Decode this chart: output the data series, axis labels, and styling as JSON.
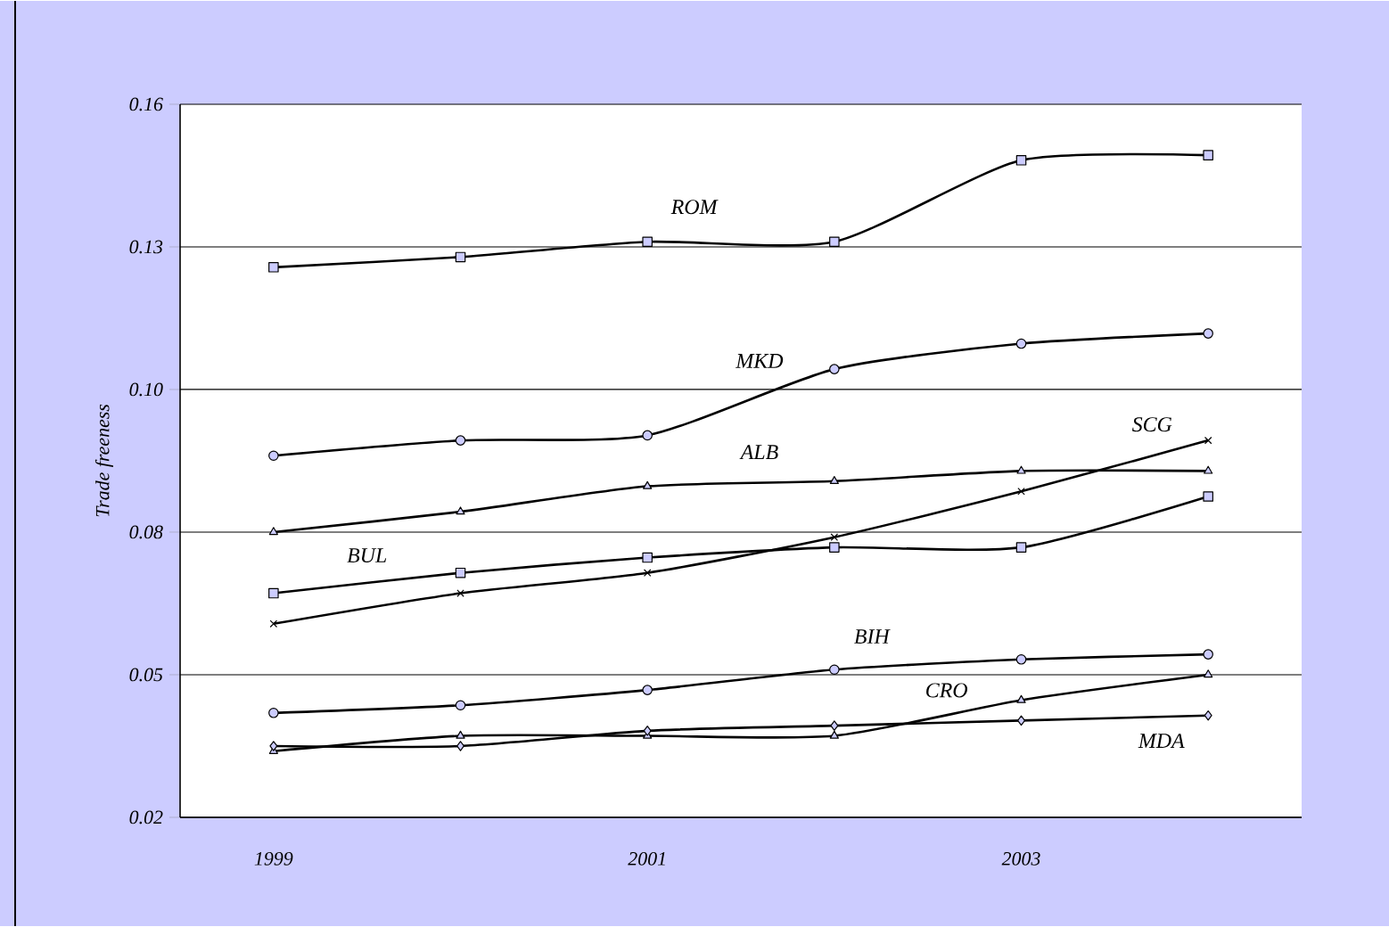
{
  "chart_data": {
    "type": "line",
    "ylabel": "Trade freeness",
    "categories": [
      "1999",
      null,
      "2001",
      null,
      "2003",
      null
    ],
    "ylim": [
      0.02,
      0.16
    ],
    "yticks": [
      {
        "value": 0.02,
        "label": "0.02"
      },
      {
        "value": 0.048,
        "label": "0.05"
      },
      {
        "value": 0.076,
        "label": "0.08"
      },
      {
        "value": 0.104,
        "label": "0.10"
      },
      {
        "value": 0.132,
        "label": "0.13"
      },
      {
        "value": 0.16,
        "label": "0.16"
      }
    ],
    "grid": "y",
    "legend": false,
    "line_style": "solid",
    "series": [
      {
        "name": "ROM",
        "color": "#000000",
        "marker": "square",
        "values": [
          0.128,
          0.13,
          0.133,
          0.133,
          0.149,
          0.15
        ]
      },
      {
        "name": "MKD",
        "color": "#000000",
        "marker": "circle",
        "values": [
          0.091,
          0.094,
          0.095,
          0.108,
          0.113,
          0.115
        ]
      },
      {
        "name": "ALB",
        "color": "#000000",
        "marker": "triangle",
        "values": [
          0.076,
          0.08,
          0.085,
          0.086,
          0.088,
          0.088
        ]
      },
      {
        "name": "SCG",
        "color": "#000000",
        "marker": "cross",
        "values": [
          0.058,
          0.064,
          0.068,
          0.075,
          0.084,
          0.094
        ]
      },
      {
        "name": "BUL",
        "color": "#000000",
        "marker": "square",
        "values": [
          0.064,
          0.068,
          0.071,
          0.073,
          0.073,
          0.083
        ]
      },
      {
        "name": "BIH",
        "color": "#000000",
        "marker": "circle",
        "values": [
          0.0405,
          0.042,
          0.045,
          0.049,
          0.051,
          0.052
        ]
      },
      {
        "name": "CRO",
        "color": "#000000",
        "marker": "triangle",
        "values": [
          0.033,
          0.036,
          0.036,
          0.036,
          0.043,
          0.048
        ]
      },
      {
        "name": "MDA",
        "color": "#000000",
        "marker": "diamond",
        "values": [
          0.034,
          0.034,
          0.037,
          0.038,
          0.039,
          0.04
        ]
      }
    ]
  }
}
